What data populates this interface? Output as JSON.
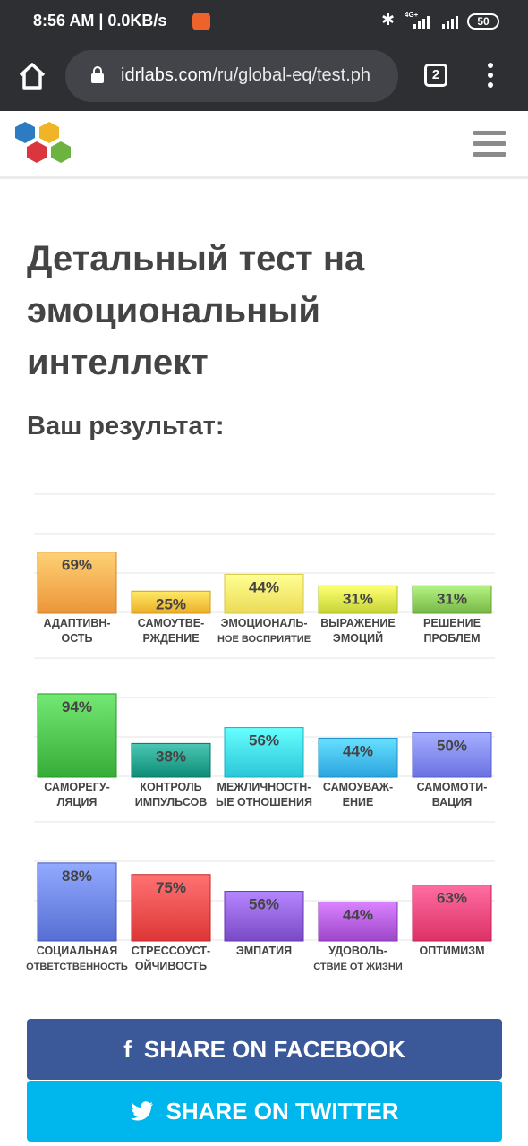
{
  "status_bar": {
    "time": "8:56 AM | 0.0KB/s",
    "network": "4G+",
    "battery": "50"
  },
  "browser": {
    "url_host": "idrlabs.com",
    "url_path": "/ru/global-eq/test.ph",
    "tab_count": "2"
  },
  "page": {
    "title_lines": [
      "Детальный тест на",
      "эмоциональный",
      "интеллект"
    ],
    "result_label": "Ваш результат:"
  },
  "chart_data": {
    "type": "bar",
    "ylim": [
      0,
      100
    ],
    "grid": true,
    "rows": [
      {
        "bars": [
          {
            "label": [
              "АДАПТИВН-",
              "ОСТЬ"
            ],
            "value": 69,
            "text": "69%",
            "color": "#ffa94d"
          },
          {
            "label": [
              "САМОУТВЕ-",
              "РЖДЕНИЕ"
            ],
            "value": 25,
            "text": "25%",
            "color": "#ffc23d"
          },
          {
            "label": [
              "ЭМОЦИОНАЛЬ-",
              "НОЕ ВОСПРИЯТИЕ"
            ],
            "value": 44,
            "text": "44%",
            "color": "#ffef6b"
          },
          {
            "label": [
              "ВЫРАЖЕНИЕ",
              "ЭМОЦИЙ"
            ],
            "value": 31,
            "text": "31%",
            "color": "#d9e84a"
          },
          {
            "label": [
              "РЕШЕНИЕ",
              "ПРОБЛЕМ"
            ],
            "value": 31,
            "text": "31%",
            "color": "#8bcb5a"
          }
        ]
      },
      {
        "bars": [
          {
            "label": [
              "САМОРЕГУ-",
              "ЛЯЦИЯ"
            ],
            "value": 94,
            "text": "94%",
            "color": "#4bc04b"
          },
          {
            "label": [
              "КОНТРОЛЬ",
              "ИМПУЛЬСОВ"
            ],
            "value": 38,
            "text": "38%",
            "color": "#22a08c"
          },
          {
            "label": [
              "МЕЖЛИЧНОСТН-",
              "ЫЕ ОТНОШЕНИЯ"
            ],
            "value": 56,
            "text": "56%",
            "color": "#3fd9ec"
          },
          {
            "label": [
              "САМОУВАЖ-",
              "ЕНИЕ"
            ],
            "value": 44,
            "text": "44%",
            "color": "#3fb8f2"
          },
          {
            "label": [
              "САМОМОТИ-",
              "ВАЦИЯ"
            ],
            "value": 50,
            "text": "50%",
            "color": "#7e86f7"
          }
        ]
      },
      {
        "bars": [
          {
            "label": [
              "СОЦИАЛЬНАЯ",
              "ОТВЕТСТВЕННОСТЬ"
            ],
            "value": 88,
            "text": "88%",
            "color": "#6a82e6"
          },
          {
            "label": [
              "СТРЕССОУСТ-",
              "ОЙЧИВОСТЬ"
            ],
            "value": 75,
            "text": "75%",
            "color": "#f14a4a"
          },
          {
            "label": [
              "ЭМПАТИЯ"
            ],
            "value": 56,
            "text": "56%",
            "color": "#8d5ed9"
          },
          {
            "label": [
              "УДОВОЛЬ-",
              "СТВИЕ ОТ ЖИЗНИ"
            ],
            "value": 44,
            "text": "44%",
            "color": "#b15bdd"
          },
          {
            "label": [
              "ОПТИМИЗМ"
            ],
            "value": 63,
            "text": "63%",
            "color": "#f0457a"
          }
        ]
      }
    ]
  },
  "share": {
    "facebook": "SHARE ON FACEBOOK",
    "twitter": "SHARE ON TWITTER"
  },
  "colors": {
    "facebook": "#3b5998",
    "twitter": "#00b7ed",
    "browser_chrome": "#2e2f33"
  }
}
